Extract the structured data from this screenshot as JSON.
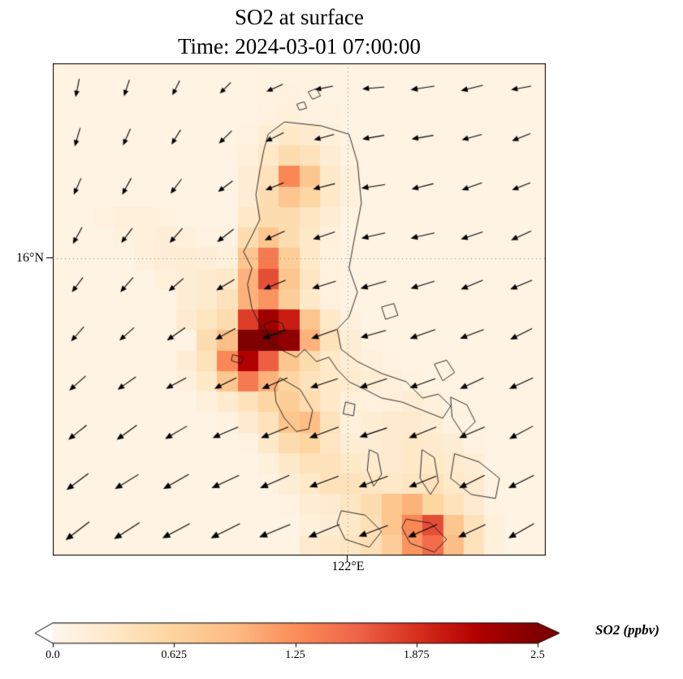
{
  "figure": {
    "title": "SO2 at surface",
    "subtitle": "Time: 2024-03-01 07:00:00"
  },
  "axes": {
    "ytick_label": "16°N",
    "xtick_label": "122°E"
  },
  "colorbar": {
    "label": "SO2 (ppbv)",
    "ticks": [
      "0.0",
      "0.625",
      "1.25",
      "1.875",
      "2.5"
    ],
    "tick_values": [
      0,
      0.625,
      1.25,
      1.875,
      2.5
    ],
    "vmin": 0,
    "vmax": 2.5,
    "under_color": "#ffffff",
    "over_color": "#7f0000",
    "colormap_stops": [
      "#fff7ec",
      "#fee8c8",
      "#fdd49e",
      "#fdbb84",
      "#fc8d59",
      "#ef6548",
      "#d7301f",
      "#b30000",
      "#7f0000"
    ]
  },
  "chart_data": {
    "type": "heatmap",
    "title": "SO2 at surface",
    "subtitle": "Time: 2024-03-01 07:00:00",
    "variable": "SO2",
    "units": "ppbv",
    "vmin": 0,
    "vmax": 2.5,
    "colormap": "OrRd",
    "gridlines": {
      "on": true,
      "lat_label": "16°N",
      "lon_label": "122°E",
      "lat_frac": 0.396,
      "lon_frac": 0.598
    },
    "grid_cols": 24,
    "grid_rows": 24,
    "values": [
      [
        0.08,
        0.08,
        0.08,
        0.08,
        0.08,
        0.08,
        0.08,
        0.08,
        0.08,
        0.08,
        0.1,
        0.1,
        0.1,
        0.08,
        0.08,
        0.08,
        0.08,
        0.08,
        0.08,
        0.08,
        0.08,
        0.08,
        0.08,
        0.08
      ],
      [
        0.08,
        0.08,
        0.08,
        0.08,
        0.08,
        0.08,
        0.08,
        0.08,
        0.08,
        0.08,
        0.1,
        0.12,
        0.1,
        0.08,
        0.08,
        0.08,
        0.08,
        0.08,
        0.08,
        0.08,
        0.08,
        0.08,
        0.08,
        0.08
      ],
      [
        0.08,
        0.08,
        0.08,
        0.08,
        0.08,
        0.08,
        0.08,
        0.08,
        0.08,
        0.08,
        0.12,
        0.15,
        0.12,
        0.1,
        0.08,
        0.08,
        0.08,
        0.08,
        0.08,
        0.08,
        0.08,
        0.08,
        0.08,
        0.08
      ],
      [
        0.08,
        0.08,
        0.08,
        0.08,
        0.08,
        0.08,
        0.08,
        0.08,
        0.08,
        0.1,
        0.2,
        0.3,
        0.25,
        0.15,
        0.08,
        0.08,
        0.08,
        0.08,
        0.08,
        0.08,
        0.08,
        0.08,
        0.08,
        0.08
      ],
      [
        0.08,
        0.08,
        0.08,
        0.08,
        0.08,
        0.08,
        0.08,
        0.08,
        0.08,
        0.15,
        0.3,
        0.5,
        0.4,
        0.2,
        0.1,
        0.08,
        0.08,
        0.08,
        0.08,
        0.08,
        0.08,
        0.08,
        0.08,
        0.08
      ],
      [
        0.08,
        0.08,
        0.08,
        0.08,
        0.08,
        0.08,
        0.08,
        0.08,
        0.08,
        0.2,
        0.4,
        1.3,
        0.8,
        0.3,
        0.15,
        0.08,
        0.08,
        0.08,
        0.08,
        0.08,
        0.08,
        0.08,
        0.08,
        0.08
      ],
      [
        0.08,
        0.08,
        0.08,
        0.08,
        0.08,
        0.08,
        0.08,
        0.08,
        0.08,
        0.2,
        0.5,
        0.8,
        0.6,
        0.3,
        0.15,
        0.08,
        0.08,
        0.08,
        0.08,
        0.08,
        0.08,
        0.08,
        0.08,
        0.08
      ],
      [
        0.08,
        0.08,
        0.12,
        0.15,
        0.15,
        0.12,
        0.08,
        0.08,
        0.08,
        0.3,
        0.5,
        0.5,
        0.35,
        0.2,
        0.1,
        0.08,
        0.08,
        0.08,
        0.08,
        0.08,
        0.08,
        0.08,
        0.08,
        0.08
      ],
      [
        0.08,
        0.08,
        0.08,
        0.12,
        0.15,
        0.18,
        0.15,
        0.1,
        0.1,
        0.5,
        0.8,
        0.5,
        0.3,
        0.15,
        0.08,
        0.08,
        0.08,
        0.08,
        0.08,
        0.08,
        0.08,
        0.08,
        0.08,
        0.08
      ],
      [
        0.08,
        0.08,
        0.08,
        0.08,
        0.15,
        0.18,
        0.2,
        0.18,
        0.15,
        0.8,
        1.4,
        0.7,
        0.3,
        0.12,
        0.08,
        0.08,
        0.08,
        0.08,
        0.08,
        0.08,
        0.08,
        0.08,
        0.08,
        0.08
      ],
      [
        0.08,
        0.08,
        0.08,
        0.08,
        0.08,
        0.15,
        0.2,
        0.25,
        0.3,
        1.0,
        1.7,
        0.8,
        0.35,
        0.12,
        0.08,
        0.08,
        0.08,
        0.08,
        0.08,
        0.08,
        0.08,
        0.08,
        0.08,
        0.08
      ],
      [
        0.08,
        0.08,
        0.08,
        0.08,
        0.08,
        0.08,
        0.2,
        0.25,
        0.4,
        1.0,
        1.2,
        0.7,
        0.3,
        0.12,
        0.08,
        0.08,
        0.08,
        0.08,
        0.08,
        0.08,
        0.08,
        0.08,
        0.08,
        0.08
      ],
      [
        0.08,
        0.08,
        0.08,
        0.08,
        0.08,
        0.08,
        0.25,
        0.35,
        0.5,
        1.8,
        2.3,
        2.0,
        0.8,
        0.3,
        0.12,
        0.08,
        0.08,
        0.08,
        0.08,
        0.08,
        0.08,
        0.08,
        0.08,
        0.08
      ],
      [
        0.08,
        0.08,
        0.08,
        0.08,
        0.08,
        0.08,
        0.08,
        0.5,
        0.9,
        2.5,
        2.6,
        2.4,
        1.0,
        0.4,
        0.2,
        0.1,
        0.08,
        0.08,
        0.08,
        0.08,
        0.08,
        0.08,
        0.08,
        0.08
      ],
      [
        0.08,
        0.08,
        0.08,
        0.08,
        0.08,
        0.08,
        0.2,
        0.4,
        1.3,
        2.2,
        1.6,
        0.8,
        0.5,
        0.3,
        0.2,
        0.15,
        0.1,
        0.08,
        0.08,
        0.08,
        0.08,
        0.08,
        0.08,
        0.08
      ],
      [
        0.08,
        0.08,
        0.08,
        0.08,
        0.08,
        0.08,
        0.15,
        0.3,
        0.8,
        1.4,
        1.0,
        0.6,
        0.4,
        0.3,
        0.25,
        0.2,
        0.15,
        0.1,
        0.08,
        0.08,
        0.08,
        0.08,
        0.08,
        0.08
      ],
      [
        0.08,
        0.08,
        0.08,
        0.08,
        0.08,
        0.08,
        0.08,
        0.15,
        0.25,
        0.4,
        0.6,
        0.7,
        0.5,
        0.3,
        0.15,
        0.12,
        0.15,
        0.2,
        0.15,
        0.08,
        0.08,
        0.08,
        0.08,
        0.08
      ],
      [
        0.08,
        0.08,
        0.08,
        0.08,
        0.08,
        0.08,
        0.08,
        0.08,
        0.1,
        0.25,
        0.4,
        0.8,
        0.9,
        0.4,
        0.15,
        0.2,
        0.25,
        0.25,
        0.2,
        0.1,
        0.08,
        0.08,
        0.08,
        0.08
      ],
      [
        0.08,
        0.08,
        0.08,
        0.08,
        0.08,
        0.08,
        0.08,
        0.08,
        0.08,
        0.1,
        0.3,
        0.5,
        0.6,
        0.35,
        0.2,
        0.2,
        0.25,
        0.3,
        0.25,
        0.2,
        0.1,
        0.08,
        0.08,
        0.08
      ],
      [
        0.08,
        0.08,
        0.08,
        0.08,
        0.08,
        0.08,
        0.08,
        0.08,
        0.08,
        0.08,
        0.15,
        0.3,
        0.4,
        0.4,
        0.3,
        0.25,
        0.25,
        0.3,
        0.3,
        0.25,
        0.2,
        0.08,
        0.08,
        0.08
      ],
      [
        0.08,
        0.08,
        0.08,
        0.08,
        0.08,
        0.08,
        0.08,
        0.08,
        0.08,
        0.08,
        0.1,
        0.2,
        0.3,
        0.4,
        0.4,
        0.35,
        0.3,
        0.35,
        0.4,
        0.3,
        0.25,
        0.1,
        0.08,
        0.08
      ],
      [
        0.08,
        0.08,
        0.08,
        0.08,
        0.08,
        0.08,
        0.08,
        0.08,
        0.08,
        0.08,
        0.08,
        0.1,
        0.2,
        0.25,
        0.35,
        0.5,
        0.8,
        1.0,
        0.6,
        0.4,
        0.25,
        0.1,
        0.08,
        0.08
      ],
      [
        0.08,
        0.08,
        0.08,
        0.08,
        0.08,
        0.08,
        0.08,
        0.08,
        0.08,
        0.08,
        0.08,
        0.08,
        0.15,
        0.2,
        0.3,
        0.45,
        0.8,
        1.3,
        1.7,
        0.8,
        0.4,
        0.15,
        0.08,
        0.08
      ],
      [
        0.08,
        0.08,
        0.08,
        0.08,
        0.08,
        0.08,
        0.08,
        0.08,
        0.08,
        0.08,
        0.08,
        0.08,
        0.25,
        0.3,
        0.35,
        0.45,
        0.7,
        1.2,
        1.5,
        0.9,
        0.4,
        0.15,
        0.08,
        0.08
      ]
    ],
    "wind": {
      "cols": 10,
      "rows": 10,
      "u": [
        [
          -0.1,
          -0.15,
          -0.2,
          -0.3,
          -0.45,
          -0.5,
          -0.6,
          -0.65,
          -0.6,
          -0.55
        ],
        [
          -0.15,
          -0.2,
          -0.25,
          -0.35,
          -0.5,
          -0.55,
          -0.6,
          -0.6,
          -0.55,
          -0.5
        ],
        [
          -0.2,
          -0.25,
          -0.3,
          -0.4,
          -0.5,
          -0.6,
          -0.65,
          -0.6,
          -0.55,
          -0.5
        ],
        [
          -0.25,
          -0.3,
          -0.35,
          -0.45,
          -0.55,
          -0.6,
          -0.65,
          -0.65,
          -0.6,
          -0.55
        ],
        [
          -0.3,
          -0.35,
          -0.4,
          -0.5,
          -0.6,
          -0.65,
          -0.7,
          -0.65,
          -0.6,
          -0.6
        ],
        [
          -0.35,
          -0.4,
          -0.5,
          -0.55,
          -0.65,
          -0.7,
          -0.7,
          -0.7,
          -0.65,
          -0.6
        ],
        [
          -0.45,
          -0.5,
          -0.55,
          -0.6,
          -0.7,
          -0.75,
          -0.75,
          -0.7,
          -0.65,
          -0.65
        ],
        [
          -0.5,
          -0.55,
          -0.6,
          -0.7,
          -0.75,
          -0.8,
          -0.75,
          -0.75,
          -0.7,
          -0.65
        ],
        [
          -0.6,
          -0.65,
          -0.7,
          -0.75,
          -0.8,
          -0.8,
          -0.8,
          -0.75,
          -0.7,
          -0.7
        ],
        [
          -0.65,
          -0.7,
          -0.75,
          -0.8,
          -0.85,
          -0.85,
          -0.8,
          -0.8,
          -0.75,
          -0.7
        ]
      ],
      "v": [
        [
          -0.5,
          -0.45,
          -0.4,
          -0.3,
          -0.2,
          -0.1,
          -0.05,
          -0.1,
          -0.15,
          -0.1
        ],
        [
          -0.5,
          -0.45,
          -0.4,
          -0.35,
          -0.25,
          -0.15,
          -0.1,
          -0.1,
          -0.15,
          -0.2
        ],
        [
          -0.45,
          -0.45,
          -0.4,
          -0.3,
          -0.2,
          -0.15,
          -0.1,
          -0.15,
          -0.2,
          -0.2
        ],
        [
          -0.45,
          -0.4,
          -0.4,
          -0.35,
          -0.25,
          -0.2,
          -0.15,
          -0.15,
          -0.2,
          -0.25
        ],
        [
          -0.4,
          -0.4,
          -0.35,
          -0.3,
          -0.25,
          -0.2,
          -0.2,
          -0.2,
          -0.25,
          -0.25
        ],
        [
          -0.4,
          -0.35,
          -0.35,
          -0.3,
          -0.25,
          -0.25,
          -0.2,
          -0.25,
          -0.25,
          -0.3
        ],
        [
          -0.4,
          -0.35,
          -0.3,
          -0.3,
          -0.3,
          -0.25,
          -0.25,
          -0.25,
          -0.3,
          -0.3
        ],
        [
          -0.4,
          -0.4,
          -0.35,
          -0.3,
          -0.3,
          -0.3,
          -0.25,
          -0.3,
          -0.3,
          -0.35
        ],
        [
          -0.45,
          -0.4,
          -0.4,
          -0.35,
          -0.35,
          -0.3,
          -0.3,
          -0.3,
          -0.35,
          -0.35
        ],
        [
          -0.5,
          -0.45,
          -0.4,
          -0.4,
          -0.35,
          -0.35,
          -0.3,
          -0.35,
          -0.35,
          -0.4
        ]
      ]
    },
    "coastlines": [
      [
        [
          0.437,
          0.144
        ],
        [
          0.47,
          0.119
        ],
        [
          0.544,
          0.127
        ],
        [
          0.601,
          0.144
        ],
        [
          0.618,
          0.201
        ],
        [
          0.626,
          0.284
        ],
        [
          0.61,
          0.366
        ],
        [
          0.601,
          0.416
        ],
        [
          0.618,
          0.465
        ],
        [
          0.601,
          0.515
        ],
        [
          0.577,
          0.54
        ],
        [
          0.585,
          0.581
        ],
        [
          0.618,
          0.606
        ],
        [
          0.667,
          0.63
        ],
        [
          0.717,
          0.647
        ],
        [
          0.75,
          0.68
        ],
        [
          0.782,
          0.672
        ],
        [
          0.807,
          0.696
        ],
        [
          0.791,
          0.721
        ],
        [
          0.75,
          0.705
        ],
        [
          0.708,
          0.688
        ],
        [
          0.667,
          0.68
        ],
        [
          0.634,
          0.663
        ],
        [
          0.601,
          0.647
        ],
        [
          0.577,
          0.622
        ],
        [
          0.56,
          0.597
        ],
        [
          0.535,
          0.606
        ],
        [
          0.511,
          0.581
        ],
        [
          0.494,
          0.597
        ],
        [
          0.461,
          0.581
        ],
        [
          0.437,
          0.564
        ],
        [
          0.42,
          0.531
        ],
        [
          0.404,
          0.498
        ],
        [
          0.395,
          0.449
        ],
        [
          0.404,
          0.416
        ],
        [
          0.387,
          0.383
        ],
        [
          0.404,
          0.35
        ],
        [
          0.42,
          0.317
        ],
        [
          0.412,
          0.267
        ],
        [
          0.42,
          0.218
        ],
        [
          0.428,
          0.177
        ]
      ],
      [
        [
          0.428,
          0.531
        ],
        [
          0.445,
          0.523
        ],
        [
          0.466,
          0.528
        ],
        [
          0.47,
          0.545
        ],
        [
          0.453,
          0.553
        ],
        [
          0.436,
          0.548
        ]
      ],
      [
        [
          0.461,
          0.639
        ],
        [
          0.502,
          0.663
        ],
        [
          0.527,
          0.705
        ],
        [
          0.519,
          0.743
        ],
        [
          0.494,
          0.748
        ],
        [
          0.47,
          0.721
        ],
        [
          0.453,
          0.688
        ],
        [
          0.45,
          0.66
        ]
      ],
      [
        [
          0.594,
          0.688
        ],
        [
          0.613,
          0.693
        ],
        [
          0.61,
          0.716
        ],
        [
          0.589,
          0.712
        ]
      ],
      [
        [
          0.667,
          0.495
        ],
        [
          0.692,
          0.488
        ],
        [
          0.7,
          0.512
        ],
        [
          0.675,
          0.52
        ]
      ],
      [
        [
          0.774,
          0.611
        ],
        [
          0.799,
          0.603
        ],
        [
          0.815,
          0.628
        ],
        [
          0.791,
          0.645
        ]
      ],
      [
        [
          0.807,
          0.678
        ],
        [
          0.84,
          0.694
        ],
        [
          0.857,
          0.728
        ],
        [
          0.832,
          0.753
        ],
        [
          0.81,
          0.719
        ]
      ],
      [
        [
          0.642,
          0.785
        ],
        [
          0.659,
          0.793
        ],
        [
          0.667,
          0.835
        ],
        [
          0.651,
          0.859
        ],
        [
          0.638,
          0.827
        ]
      ],
      [
        [
          0.749,
          0.785
        ],
        [
          0.774,
          0.801
        ],
        [
          0.782,
          0.851
        ],
        [
          0.766,
          0.876
        ],
        [
          0.745,
          0.843
        ]
      ],
      [
        [
          0.815,
          0.793
        ],
        [
          0.865,
          0.81
        ],
        [
          0.906,
          0.843
        ],
        [
          0.898,
          0.884
        ],
        [
          0.849,
          0.876
        ],
        [
          0.807,
          0.843
        ]
      ],
      [
        [
          0.585,
          0.909
        ],
        [
          0.634,
          0.918
        ],
        [
          0.667,
          0.951
        ],
        [
          0.642,
          0.983
        ],
        [
          0.593,
          0.967
        ],
        [
          0.577,
          0.934
        ]
      ],
      [
        [
          0.717,
          0.926
        ],
        [
          0.766,
          0.934
        ],
        [
          0.799,
          0.967
        ],
        [
          0.774,
          0.993
        ],
        [
          0.725,
          0.975
        ],
        [
          0.708,
          0.943
        ]
      ],
      [
        [
          0.518,
          0.058
        ],
        [
          0.535,
          0.051
        ],
        [
          0.543,
          0.066
        ],
        [
          0.527,
          0.073
        ]
      ],
      [
        [
          0.495,
          0.083
        ],
        [
          0.51,
          0.078
        ],
        [
          0.515,
          0.091
        ],
        [
          0.5,
          0.095
        ]
      ],
      [
        [
          0.365,
          0.592
        ],
        [
          0.387,
          0.597
        ],
        [
          0.382,
          0.61
        ],
        [
          0.362,
          0.604
        ]
      ]
    ]
  }
}
